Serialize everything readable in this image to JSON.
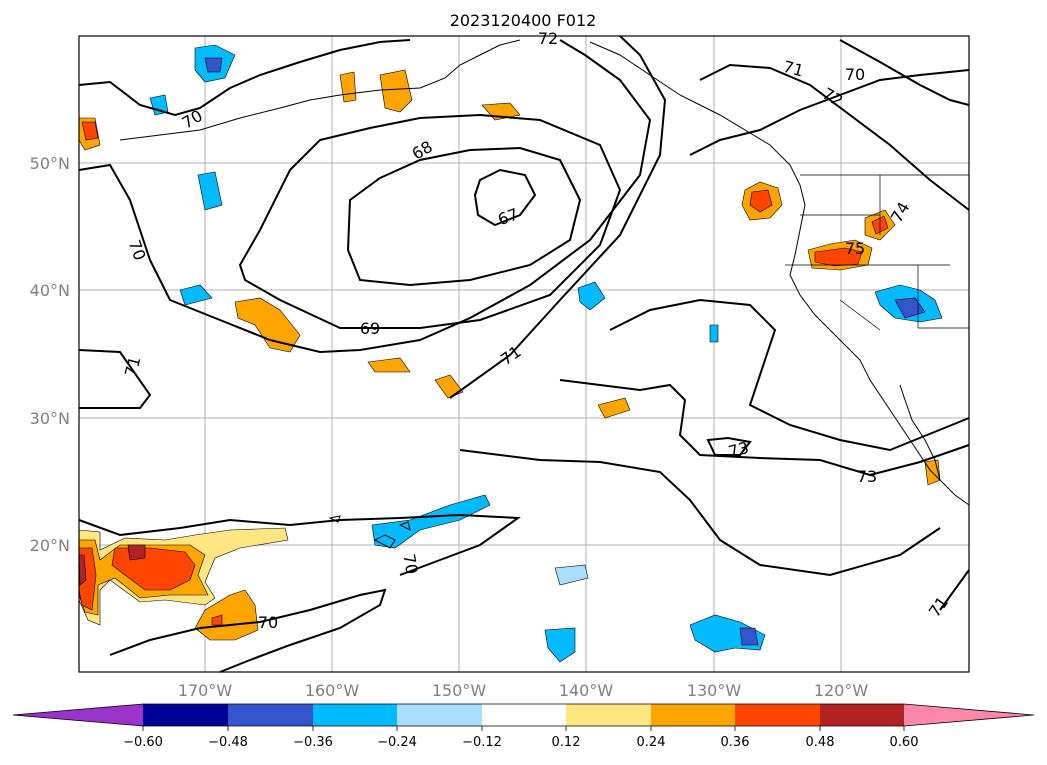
{
  "title": "2023120400 F012",
  "map": {
    "lon_labels": [
      "170°W",
      "160°W",
      "150°W",
      "140°W",
      "130°W",
      "120°W"
    ],
    "lat_labels": [
      "50°N",
      "40°N",
      "30°N",
      "20°N"
    ],
    "grid": true,
    "contour_labels": [
      "72",
      "71",
      "70",
      "72",
      "70",
      "68",
      "67",
      "70",
      "69",
      "71",
      "71",
      "73",
      "73",
      "75",
      "74",
      "70",
      "70",
      "71"
    ]
  },
  "colorbar": {
    "ticks": [
      "−0.60",
      "−0.48",
      "−0.36",
      "−0.24",
      "−0.12",
      "0.12",
      "0.24",
      "0.36",
      "0.48",
      "0.60"
    ],
    "colors": [
      "#9933cc",
      "#000099",
      "#3355cc",
      "#00bbff",
      "#aaddff",
      "#ffffff",
      "#ffe680",
      "#ffa500",
      "#ff4500",
      "#b22222",
      "#ff88aa"
    ],
    "extend": "both"
  }
}
